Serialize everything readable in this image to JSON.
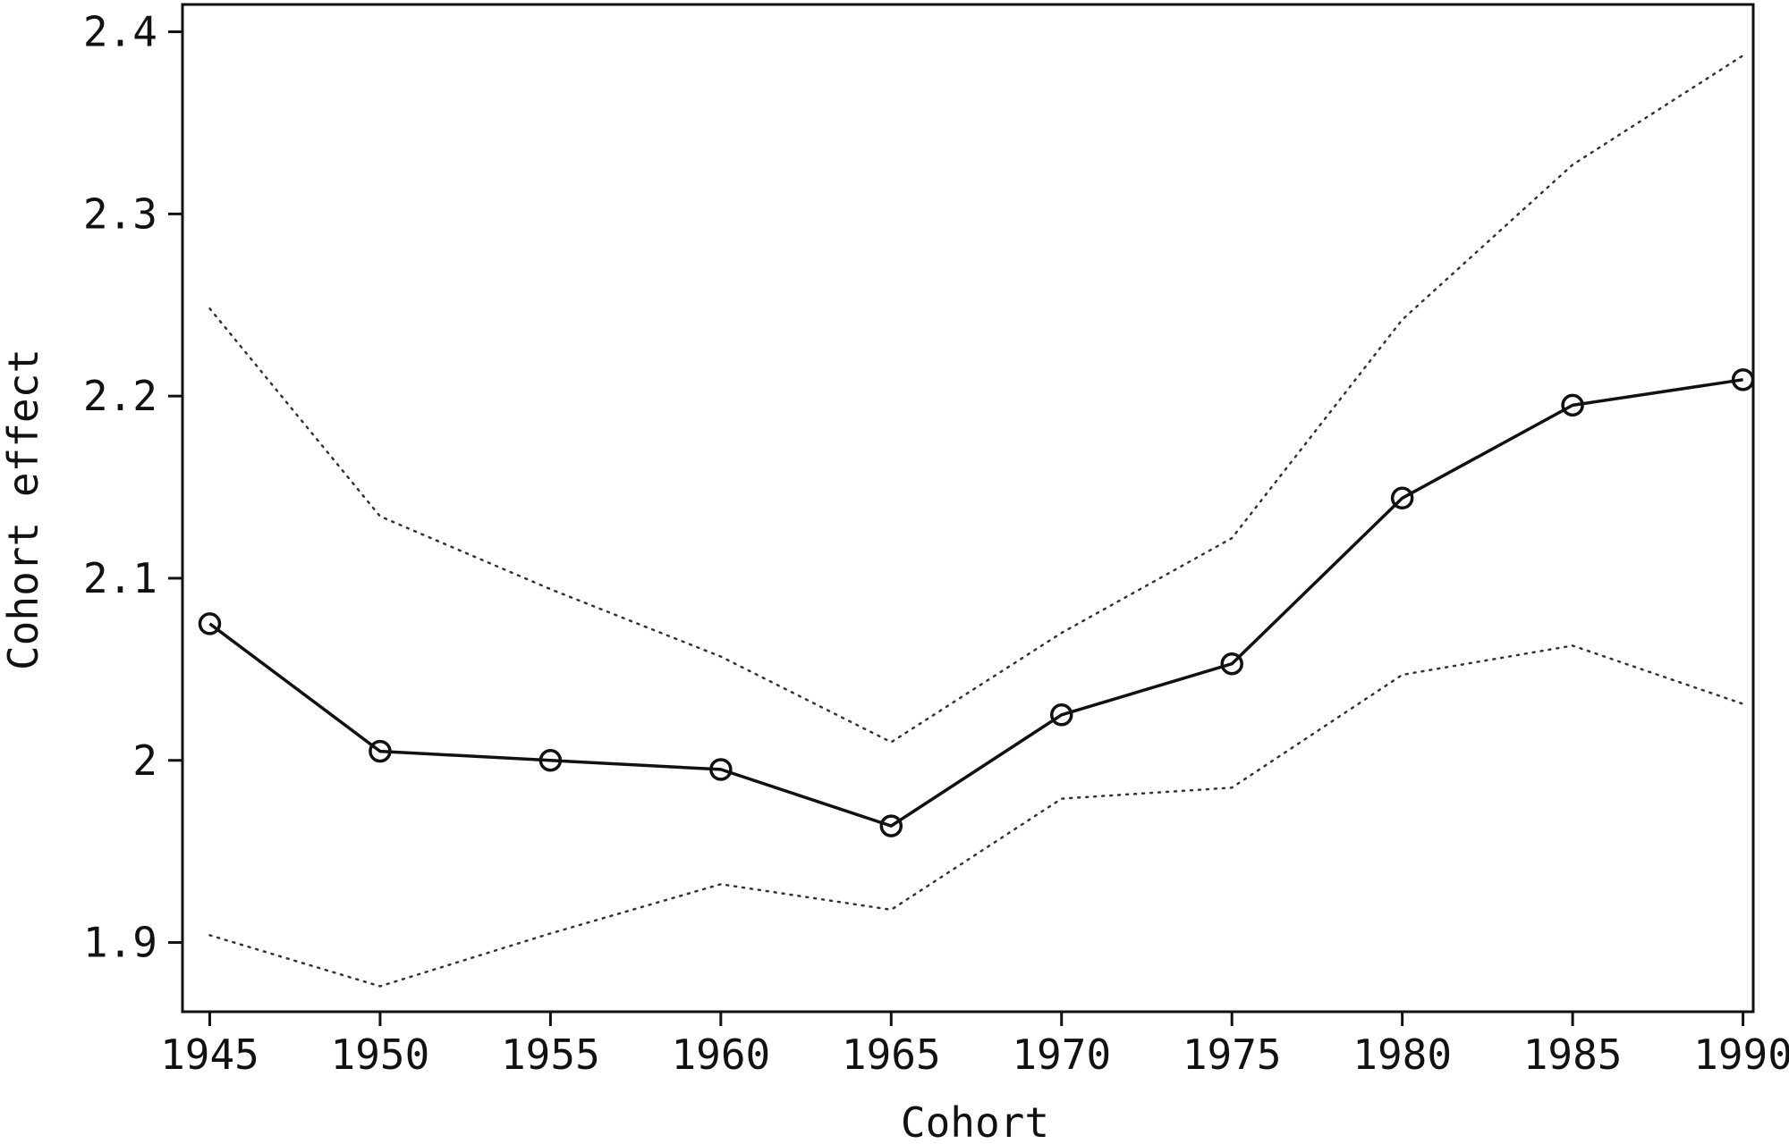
{
  "chart_data": {
    "type": "line",
    "xlabel": "Cohort",
    "ylabel": "Cohort effect",
    "x": [
      1945,
      1950,
      1955,
      1960,
      1965,
      1970,
      1975,
      1980,
      1985,
      1990
    ],
    "xlim": [
      1944.2,
      1990.3
    ],
    "ylim": [
      1.862,
      2.415
    ],
    "x_ticks": [
      1945,
      1950,
      1955,
      1960,
      1965,
      1970,
      1975,
      1980,
      1985,
      1990
    ],
    "x_tick_labels": [
      "1945",
      "1950",
      "1955",
      "1960",
      "1965",
      "1970",
      "1975",
      "1980",
      "1985",
      "1990"
    ],
    "y_ticks": [
      1.9,
      2.0,
      2.1,
      2.2,
      2.3,
      2.4
    ],
    "y_tick_labels": [
      "1.9",
      "2",
      "2.1",
      "2.2",
      "2.3",
      "2.4"
    ],
    "grid": false,
    "legend": "none",
    "series": [
      {
        "style": "solid-with-circle-markers",
        "color": "#111111",
        "values": [
          2.075,
          2.005,
          2.0,
          1.995,
          1.964,
          2.025,
          2.053,
          2.144,
          2.195,
          2.209
        ]
      },
      {
        "style": "dotted",
        "color": "#333333",
        "values": [
          2.248,
          2.134,
          2.094,
          2.057,
          2.01,
          2.07,
          2.122,
          2.242,
          2.327,
          2.387
        ]
      },
      {
        "style": "dotted",
        "color": "#333333",
        "values": [
          1.904,
          1.876,
          1.905,
          1.932,
          1.918,
          1.979,
          1.985,
          2.047,
          2.063,
          2.031
        ]
      }
    ]
  }
}
